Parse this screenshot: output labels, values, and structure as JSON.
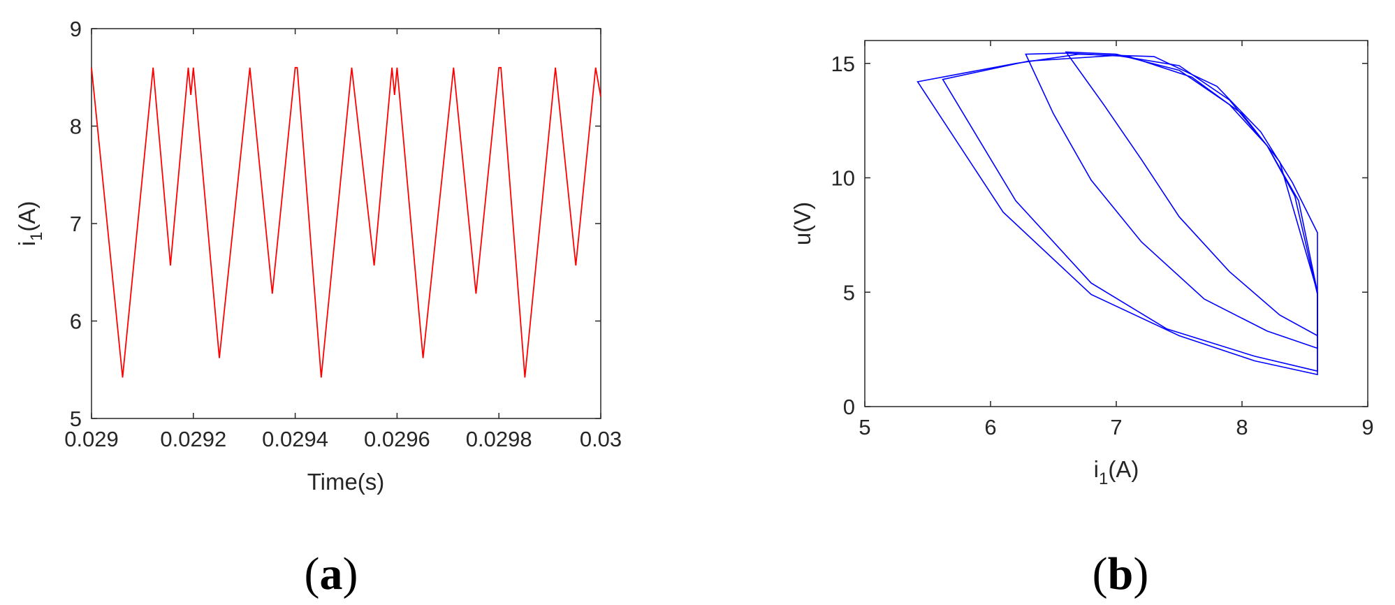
{
  "chart_data": [
    {
      "type": "line",
      "panel_label": "a",
      "xlabel": "Time(s)",
      "ylabel": {
        "base": "i",
        "sub": "1",
        "unit": "(A)"
      },
      "xlim": [
        0.029,
        0.03
      ],
      "ylim": [
        5,
        9
      ],
      "xticks": [
        0.029,
        0.0292,
        0.0294,
        0.0296,
        0.0298,
        0.03
      ],
      "xtick_labels": [
        "0.029",
        "0.0292",
        "0.0294",
        "0.0296",
        "0.0298",
        "0.03"
      ],
      "yticks": [
        5,
        6,
        7,
        8,
        9
      ],
      "ytick_labels": [
        "5",
        "6",
        "7",
        "8",
        "9"
      ],
      "grid": false,
      "series": [
        {
          "color": "#ff0000",
          "x": [
            0.029,
            0.029061,
            0.029121,
            0.029155,
            0.02919,
            0.029195,
            0.0292,
            0.029251,
            0.029311,
            0.029355,
            0.0294,
            0.029404,
            0.029451,
            0.029511,
            0.029555,
            0.02959,
            0.029595,
            0.0296,
            0.029651,
            0.029711,
            0.029755,
            0.0298,
            0.029804,
            0.029851,
            0.029911,
            0.029951,
            0.02999,
            0.03
          ],
          "y": [
            8.6,
            5.42,
            8.6,
            6.57,
            8.6,
            8.32,
            8.6,
            5.62,
            8.6,
            6.28,
            8.6,
            8.6,
            5.42,
            8.6,
            6.57,
            8.6,
            8.32,
            8.6,
            5.62,
            8.6,
            6.28,
            8.6,
            8.6,
            5.42,
            8.6,
            6.57,
            8.6,
            8.3
          ]
        }
      ]
    },
    {
      "type": "line",
      "panel_label": "b",
      "xlabel": {
        "base": "i",
        "sub": "1",
        "unit": "(A)"
      },
      "ylabel": "u(V)",
      "xlim": [
        5,
        9
      ],
      "ylim": [
        0,
        16
      ],
      "xticks": [
        5,
        6,
        7,
        8,
        9
      ],
      "xtick_labels": [
        "5",
        "6",
        "7",
        "8",
        "9"
      ],
      "yticks": [
        0,
        5,
        10,
        15
      ],
      "ytick_labels": [
        "0",
        "5",
        "10",
        "15"
      ],
      "grid": false,
      "series": [
        {
          "color": "#0000ff",
          "x": [
            5.42,
            6.2,
            6.7,
            7.3,
            7.8,
            8.15,
            8.4,
            8.6,
            8.6,
            8.1,
            7.5,
            6.8,
            6.1,
            5.42
          ],
          "y": [
            14.2,
            15.0,
            15.4,
            15.3,
            14.0,
            12.0,
            9.8,
            7.6,
            1.4,
            2.0,
            3.1,
            4.9,
            8.5,
            14.2
          ]
        },
        {
          "color": "#0000ff",
          "x": [
            5.62,
            6.3,
            7.0,
            7.5,
            7.9,
            8.2,
            8.42,
            8.6,
            8.6,
            8.1,
            7.4,
            6.8,
            6.2,
            5.62
          ],
          "y": [
            14.3,
            15.1,
            15.35,
            14.9,
            13.4,
            11.4,
            9.2,
            4.9,
            1.55,
            2.2,
            3.4,
            5.4,
            9.0,
            14.3
          ]
        },
        {
          "color": "#0000ff",
          "x": [
            6.28,
            6.6,
            7.1,
            7.6,
            8.0,
            8.3,
            8.6,
            8.6,
            8.2,
            7.7,
            7.2,
            6.8,
            6.5,
            6.28
          ],
          "y": [
            15.4,
            15.45,
            15.3,
            14.4,
            12.8,
            10.7,
            5.0,
            2.55,
            3.3,
            4.7,
            7.2,
            9.9,
            12.8,
            15.4
          ]
        },
        {
          "color": "#0000ff",
          "x": [
            6.6,
            7.0,
            7.5,
            7.9,
            8.2,
            8.45,
            8.6,
            8.6,
            8.3,
            7.9,
            7.5,
            7.2,
            6.9,
            6.6
          ],
          "y": [
            15.5,
            15.4,
            14.7,
            13.2,
            11.4,
            9.0,
            5.0,
            3.1,
            4.0,
            5.9,
            8.3,
            10.8,
            13.2,
            15.5
          ]
        }
      ]
    }
  ]
}
